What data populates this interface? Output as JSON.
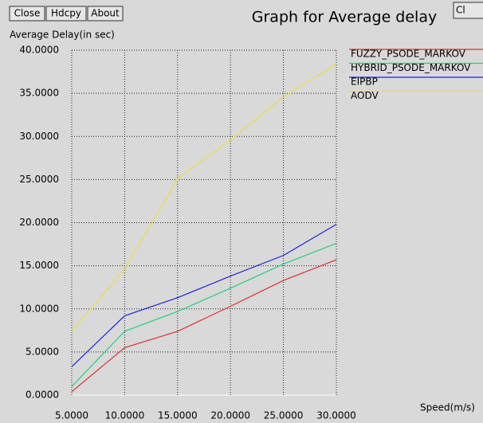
{
  "buttons": [
    "Close",
    "Hdcpy",
    "About",
    "Cl"
  ],
  "chart_data": {
    "type": "line",
    "title": "Graph for Average delay",
    "y_label": "Average Delay(in sec)",
    "x_label": "Speed(m/s)",
    "x": [
      5,
      10,
      15,
      20,
      25,
      30
    ],
    "xlim": [
      5,
      30
    ],
    "xticks": [
      {
        "value": 5,
        "label": "5.0000"
      },
      {
        "value": 10,
        "label": "10.0000"
      },
      {
        "value": 15,
        "label": "15.0000"
      },
      {
        "value": 20,
        "label": "20.0000"
      },
      {
        "value": 25,
        "label": "25.0000"
      },
      {
        "value": 30,
        "label": "30.0000"
      }
    ],
    "ylim": [
      0,
      40
    ],
    "yticks": [
      {
        "value": 0,
        "label": "0.0000"
      },
      {
        "value": 5,
        "label": "5.0000"
      },
      {
        "value": 10,
        "label": "10.0000"
      },
      {
        "value": 15,
        "label": "15.0000"
      },
      {
        "value": 20,
        "label": "20.0000"
      },
      {
        "value": 25,
        "label": "25.0000"
      },
      {
        "value": 30,
        "label": "30.0000"
      },
      {
        "value": 35,
        "label": "35.0000"
      },
      {
        "value": 40,
        "label": "40.0000"
      }
    ],
    "grid": true,
    "series": [
      {
        "name": "FUZZY_PSODE_MARKOV",
        "color": "#e03030",
        "values": [
          0.4,
          5.5,
          7.4,
          10.3,
          13.3,
          15.7
        ]
      },
      {
        "name": "HYBRID_PSODE_MARKOV",
        "color": "#20d080",
        "values": [
          1.0,
          7.4,
          9.7,
          12.4,
          15.2,
          17.6
        ]
      },
      {
        "name": "EIPBP",
        "color": "#2020e0",
        "values": [
          3.3,
          9.2,
          11.3,
          13.8,
          16.2,
          19.8
        ]
      },
      {
        "name": "AODV",
        "color": "#e8e040",
        "values": [
          7.4,
          14.6,
          25.1,
          29.6,
          34.6,
          38.4
        ]
      }
    ]
  }
}
